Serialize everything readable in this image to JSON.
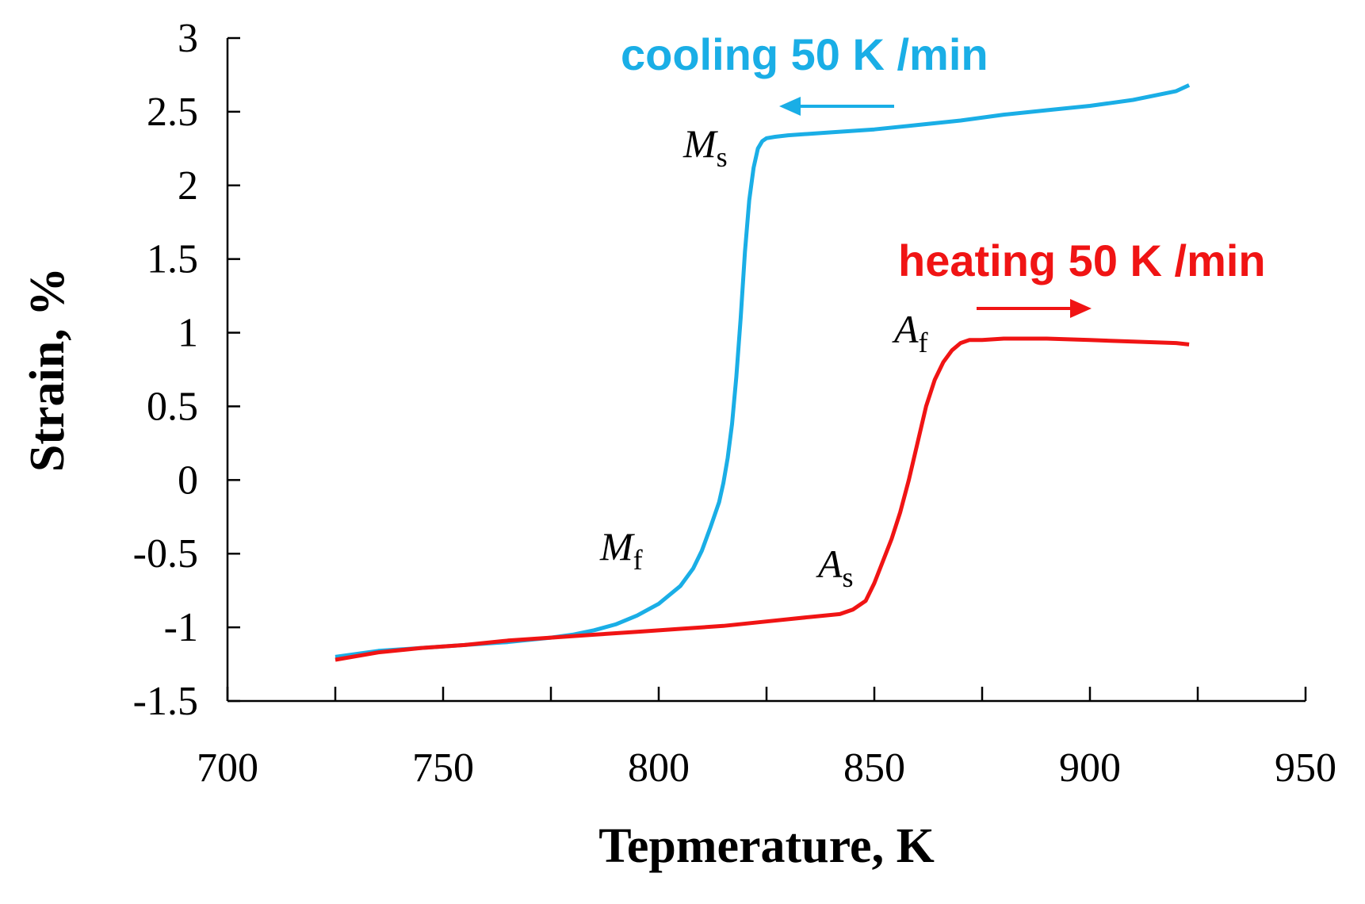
{
  "chart_data": {
    "type": "line",
    "title": "",
    "xlabel": "Tepmerature, K",
    "ylabel": "Strain, %",
    "xlim": [
      700,
      950
    ],
    "ylim": [
      -1.5,
      3
    ],
    "x_ticks": [
      "700",
      "750",
      "800",
      "850",
      "900",
      "950"
    ],
    "y_ticks": [
      "3",
      "2.5",
      "2",
      "1.5",
      "1",
      "0.5",
      "0",
      "-0.5",
      "-1",
      "-1.5"
    ],
    "grid": false,
    "legend": "none",
    "colors": {
      "cooling": "#1aaee6",
      "heating": "#f01414"
    },
    "series": [
      {
        "name": "cooling",
        "x": [
          725,
          735,
          745,
          755,
          765,
          775,
          780,
          785,
          790,
          795,
          800,
          805,
          808,
          810,
          812,
          814,
          815,
          816,
          817,
          818,
          819,
          820,
          821,
          822,
          823,
          824,
          825,
          827,
          830,
          840,
          850,
          860,
          870,
          880,
          890,
          900,
          910,
          920,
          923
        ],
        "y": [
          -1.2,
          -1.16,
          -1.14,
          -1.12,
          -1.1,
          -1.07,
          -1.05,
          -1.02,
          -0.98,
          -0.92,
          -0.84,
          -0.72,
          -0.6,
          -0.48,
          -0.32,
          -0.15,
          -0.02,
          0.15,
          0.38,
          0.7,
          1.1,
          1.55,
          1.9,
          2.12,
          2.25,
          2.3,
          2.32,
          2.33,
          2.34,
          2.36,
          2.38,
          2.41,
          2.44,
          2.48,
          2.51,
          2.54,
          2.58,
          2.64,
          2.68
        ]
      },
      {
        "name": "heating",
        "x": [
          725,
          735,
          745,
          755,
          765,
          775,
          785,
          795,
          805,
          815,
          825,
          835,
          842,
          845,
          848,
          850,
          852,
          854,
          856,
          858,
          860,
          862,
          864,
          866,
          868,
          870,
          872,
          875,
          880,
          890,
          900,
          910,
          920,
          923
        ],
        "y": [
          -1.22,
          -1.17,
          -1.14,
          -1.12,
          -1.09,
          -1.07,
          -1.05,
          -1.03,
          -1.01,
          -0.99,
          -0.96,
          -0.93,
          -0.91,
          -0.88,
          -0.82,
          -0.7,
          -0.55,
          -0.4,
          -0.22,
          0.0,
          0.25,
          0.5,
          0.68,
          0.8,
          0.88,
          0.93,
          0.95,
          0.95,
          0.96,
          0.96,
          0.95,
          0.94,
          0.93,
          0.92
        ]
      }
    ],
    "annotations": {
      "cooling_label": "cooling 50 K /min",
      "heating_label": "heating 50 K /min",
      "Ms": {
        "main": "M",
        "sub": "s"
      },
      "Mf": {
        "main": "M",
        "sub": "f"
      },
      "As": {
        "main": "A",
        "sub": "s"
      },
      "Af": {
        "main": "A",
        "sub": "f"
      }
    }
  }
}
